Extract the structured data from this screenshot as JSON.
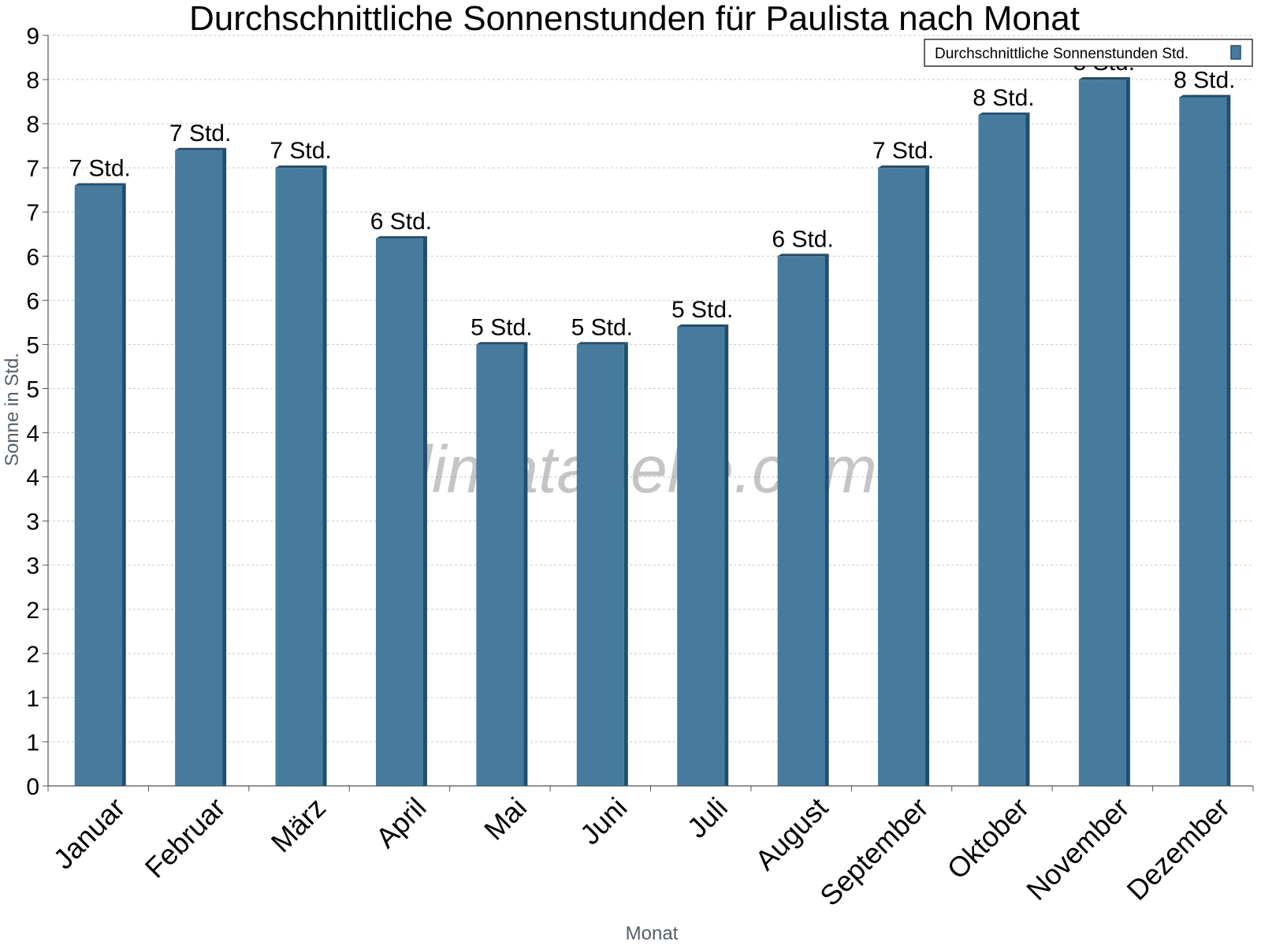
{
  "watermark": "klimatabelle.com",
  "colors": {
    "bar_front": "#467b9e",
    "bar_side": "#1f4e70",
    "bar_top": "#1f4e70",
    "grid": "#c8c8c8",
    "axis": "#555555"
  },
  "chart_data": {
    "type": "bar",
    "title": "Durchschnittliche Sonnenstunden für Paulista nach Monat",
    "xlabel": "Monat",
    "ylabel": "Sonne in Std.",
    "ylim": [
      0,
      8.5
    ],
    "grid": true,
    "legend_position": "top-right",
    "y_ticks": [
      {
        "value": 0,
        "label": "0"
      },
      {
        "value": 0.5,
        "label": "1"
      },
      {
        "value": 1,
        "label": "1"
      },
      {
        "value": 1.5,
        "label": "2"
      },
      {
        "value": 2,
        "label": "2"
      },
      {
        "value": 2.5,
        "label": "3"
      },
      {
        "value": 3,
        "label": "3"
      },
      {
        "value": 3.5,
        "label": "4"
      },
      {
        "value": 4,
        "label": "4"
      },
      {
        "value": 4.5,
        "label": "5"
      },
      {
        "value": 5,
        "label": "5"
      },
      {
        "value": 5.5,
        "label": "6"
      },
      {
        "value": 6,
        "label": "6"
      },
      {
        "value": 6.5,
        "label": "7"
      },
      {
        "value": 7,
        "label": "7"
      },
      {
        "value": 7.5,
        "label": "8"
      },
      {
        "value": 8,
        "label": "8"
      },
      {
        "value": 8.5,
        "label": "9"
      }
    ],
    "categories": [
      "Januar",
      "Februar",
      "März",
      "April",
      "Mai",
      "Juni",
      "Juli",
      "August",
      "September",
      "Oktober",
      "November",
      "Dezember"
    ],
    "series": [
      {
        "name": "Durchschnittliche Sonnenstunden Std.",
        "values": [
          6.8,
          7.2,
          7.0,
          6.2,
          5.0,
          5.0,
          5.2,
          6.0,
          7.0,
          7.6,
          8.0,
          7.8
        ],
        "data_labels": [
          "7 Std.",
          "7 Std.",
          "7 Std.",
          "6 Std.",
          "5 Std.",
          "5 Std.",
          "5 Std.",
          "6 Std.",
          "7 Std.",
          "8 Std.",
          "8 Std.",
          "8 Std."
        ]
      }
    ]
  }
}
